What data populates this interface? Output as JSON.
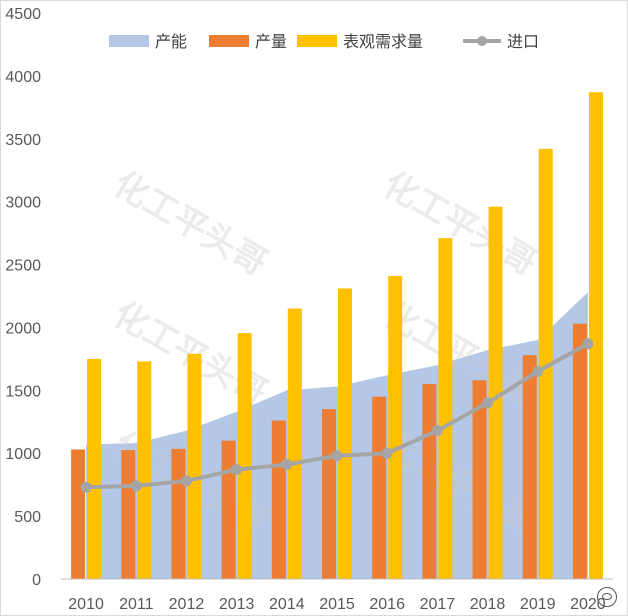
{
  "chart_data": {
    "type": "bar",
    "categories": [
      "2010",
      "2011",
      "2012",
      "2013",
      "2014",
      "2015",
      "2016",
      "2017",
      "2018",
      "2019",
      "2020"
    ],
    "series": [
      {
        "name": "产能",
        "type": "area",
        "color": "#b4c7e7",
        "values": [
          1070,
          1080,
          1180,
          1330,
          1500,
          1530,
          1620,
          1700,
          1820,
          1900,
          2280
        ]
      },
      {
        "name": "产量",
        "type": "bar",
        "color": "#ed7d31",
        "values": [
          1030,
          1025,
          1035,
          1100,
          1260,
          1350,
          1450,
          1550,
          1580,
          1780,
          2030
        ]
      },
      {
        "name": "表观需求量",
        "type": "bar",
        "color": "#ffc000",
        "values": [
          1750,
          1730,
          1790,
          1955,
          2150,
          2310,
          2410,
          2710,
          2960,
          3420,
          3870
        ]
      },
      {
        "name": "进口",
        "type": "line",
        "color": "#a5a5a5",
        "values": [
          730,
          740,
          780,
          870,
          910,
          980,
          1000,
          1180,
          1400,
          1650,
          1870
        ]
      }
    ],
    "ylim": [
      0,
      4500
    ],
    "yticks": [
      "0",
      "500",
      "1000",
      "1500",
      "2000",
      "2500",
      "3000",
      "3500",
      "4000",
      "4500"
    ],
    "legend_position": "top",
    "grid": false
  },
  "watermark": {
    "text": "化工平头哥"
  }
}
